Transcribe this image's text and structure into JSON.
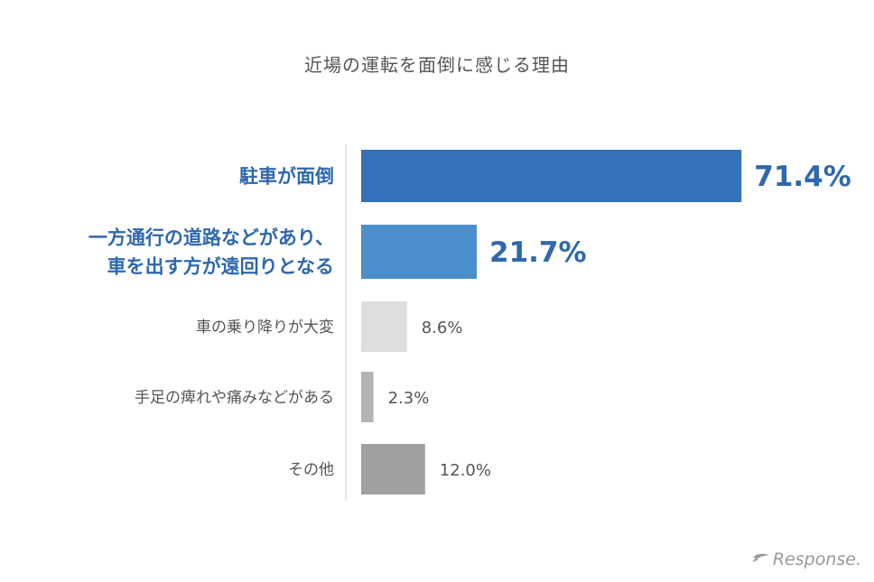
{
  "chart_data": {
    "type": "bar",
    "orientation": "horizontal",
    "title": "近場の運転を面倒に感じる理由",
    "unit": "%",
    "xlim": [
      0,
      100
    ],
    "categories": [
      [
        "駐車が面倒"
      ],
      [
        "一方通行の道路などがあり、",
        "車を出す方が遠回りとなる"
      ],
      [
        "車の乗り降りが大変"
      ],
      [
        "手足の痺れや痛みなどがある"
      ],
      [
        "その他"
      ]
    ],
    "values": [
      71.4,
      21.7,
      8.6,
      2.3,
      12.0
    ],
    "value_labels": [
      "71.4%",
      "21.7%",
      "8.6%",
      "2.3%",
      "12.0%"
    ],
    "bar_colors": [
      "#3572bb",
      "#4a8fcc",
      "#dedede",
      "#b3b3b3",
      "#a0a0a0"
    ],
    "label_colors": [
      "#2f68ad",
      "#2f68ad",
      "#555555",
      "#555555",
      "#555555"
    ],
    "value_colors": [
      "#2f68ad",
      "#2f68ad",
      "#555555",
      "#555555",
      "#555555"
    ],
    "highlighted": [
      true,
      true,
      false,
      false,
      false
    ],
    "grid": false
  },
  "brand": {
    "logo_text": "Response.",
    "logo_icon": "response-arrow-icon"
  }
}
